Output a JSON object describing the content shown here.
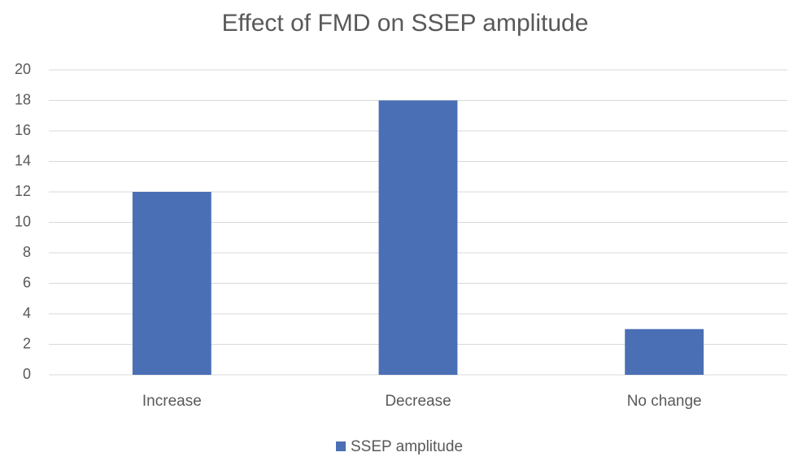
{
  "chart_data": {
    "type": "bar",
    "title": "Effect of FMD on SSEP amplitude",
    "categories": [
      "Increase",
      "Decrease",
      "No change"
    ],
    "series": [
      {
        "name": "SSEP amplitude",
        "color": "#4a6fb5",
        "values": [
          12,
          18,
          3
        ]
      }
    ],
    "ylim": [
      0,
      20
    ],
    "yticks": [
      0,
      2,
      4,
      6,
      8,
      10,
      12,
      14,
      16,
      18,
      20
    ],
    "grid": true,
    "legend": "bottom"
  }
}
